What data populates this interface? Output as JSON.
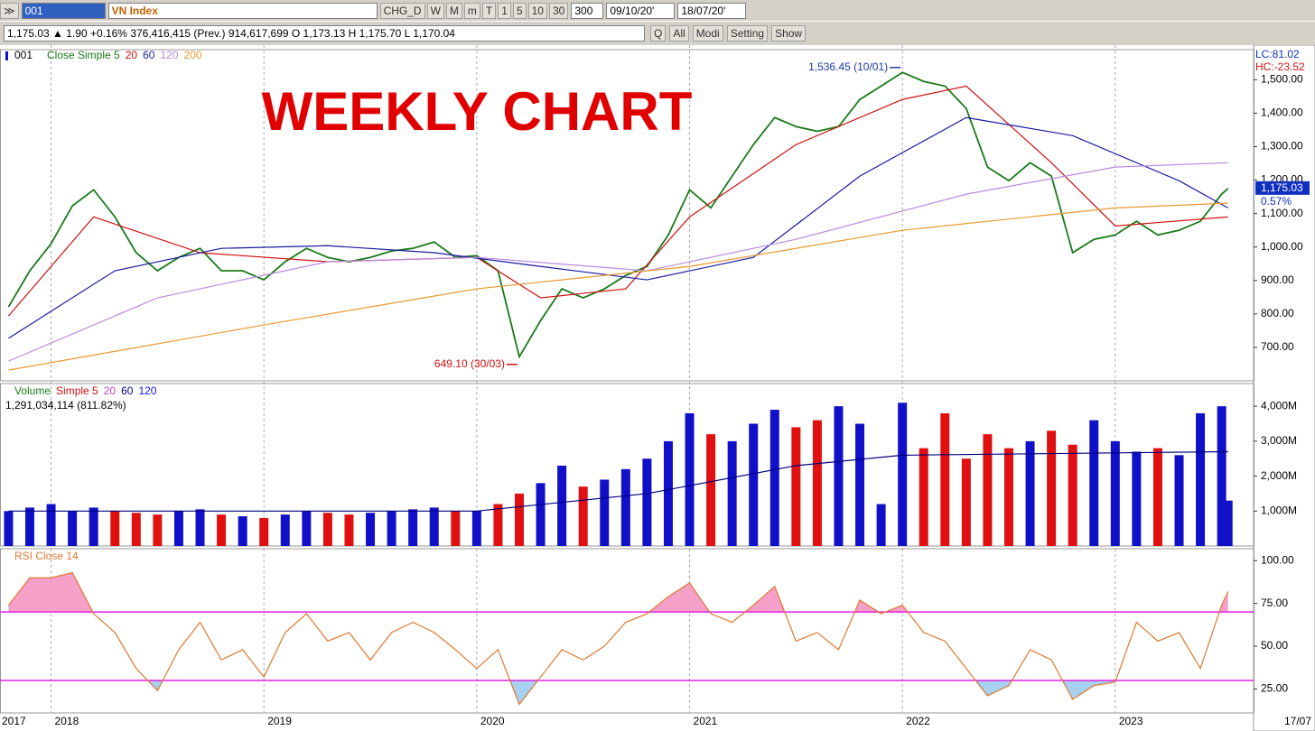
{
  "toolbar": {
    "symbol": "001",
    "index_name": "VN Index",
    "buttons": [
      "CHG_D",
      "W",
      "M",
      "m",
      "T",
      "1",
      "5",
      "10",
      "30"
    ],
    "bars": "300",
    "date_from": "09/10/20'",
    "date_to": "18/07/20'"
  },
  "info_line": "1,175.03 ▲ 1.90 +0.16% 376,416,415 (Prev.) 914,617,699 O 1,173.13 H 1,175.70 L 1,170.04",
  "info_buttons": [
    "Q",
    "All",
    "Modi",
    "Setting",
    "Show"
  ],
  "right_labels": {
    "lc": "LC:81.02",
    "hc": "HC:-23.52",
    "last": "1,175.03",
    "change": "0.57%"
  },
  "x_start_label": "2017",
  "x_end_label": "17/07",
  "chart_data": [
    {
      "type": "line",
      "title": "WEEKLY CHART",
      "symbol_tag": "001",
      "xlim": [
        2017.76,
        2023.65
      ],
      "xticks": [
        2018,
        2019,
        2020,
        2021,
        2022,
        2023
      ],
      "ylim": [
        600,
        1590
      ],
      "yticks": [
        {
          "value": 700,
          "label": "700.00"
        },
        {
          "value": 800,
          "label": "800.00"
        },
        {
          "value": 900,
          "label": "900.00"
        },
        {
          "value": 1000,
          "label": "1,000.00"
        },
        {
          "value": 1100,
          "label": "1,100.00"
        },
        {
          "value": 1200,
          "label": "1,200.00"
        },
        {
          "value": 1300,
          "label": "1,300.00"
        },
        {
          "value": 1400,
          "label": "1,400.00"
        },
        {
          "value": 1500,
          "label": "1,500.00"
        }
      ],
      "last_value": 1175,
      "series": [
        {
          "name": "Close Simple 5",
          "color": "#1a7a1a",
          "x": [
            2017.8,
            2017.9,
            2018.0,
            2018.1,
            2018.2,
            2018.3,
            2018.4,
            2018.5,
            2018.6,
            2018.7,
            2018.8,
            2018.9,
            2019.0,
            2019.1,
            2019.2,
            2019.3,
            2019.4,
            2019.5,
            2019.6,
            2019.7,
            2019.8,
            2019.9,
            2020.0,
            2020.1,
            2020.2,
            2020.3,
            2020.4,
            2020.5,
            2020.6,
            2020.7,
            2020.8,
            2020.9,
            2021.0,
            2021.1,
            2021.2,
            2021.3,
            2021.4,
            2021.5,
            2021.6,
            2021.7,
            2021.8,
            2021.9,
            2022.0,
            2022.1,
            2022.2,
            2022.3,
            2022.4,
            2022.5,
            2022.6,
            2022.7,
            2022.8,
            2022.9,
            2023.0,
            2023.1,
            2023.2,
            2023.3,
            2023.4,
            2023.5,
            2023.53
          ],
          "values": [
            821,
            929,
            1010,
            1123,
            1171,
            1090,
            983,
            929,
            969,
            996,
            929,
            929,
            902,
            956,
            996,
            969,
            956,
            969,
            988,
            996,
            1015,
            969,
            974,
            929,
            672,
            780,
            875,
            848,
            875,
            915,
            942,
            1036,
            1171,
            1117,
            1212,
            1306,
            1387,
            1360,
            1346,
            1360,
            1441,
            1481,
            1522,
            1495,
            1481,
            1414,
            1239,
            1198,
            1252,
            1212,
            983,
            1023,
            1036,
            1077,
            1036,
            1050,
            1077,
            1158,
            1175
          ]
        },
        {
          "name": "20",
          "color": "#d01010",
          "x": [
            2017.8,
            2018.2,
            2018.7,
            2019.3,
            2020.0,
            2020.3,
            2020.7,
            2021.0,
            2021.5,
            2022.0,
            2022.3,
            2022.7,
            2023.0,
            2023.53
          ],
          "values": [
            794,
            1090,
            983,
            956,
            969,
            848,
            875,
            1090,
            1306,
            1441,
            1481,
            1252,
            1063,
            1090
          ]
        },
        {
          "name": "60",
          "color": "#1a1aa0",
          "x": [
            2017.8,
            2018.3,
            2018.8,
            2019.3,
            2019.8,
            2020.3,
            2020.8,
            2021.3,
            2021.8,
            2022.3,
            2022.8,
            2023.3,
            2023.53
          ],
          "values": [
            727,
            929,
            996,
            1004,
            983,
            942,
            902,
            969,
            1212,
            1387,
            1333,
            1198,
            1117
          ]
        },
        {
          "name": "120",
          "color": "#b88ae0",
          "x": [
            2017.8,
            2018.5,
            2019.3,
            2020.0,
            2020.8,
            2021.5,
            2022.3,
            2023.0,
            2023.53
          ],
          "values": [
            659,
            848,
            956,
            969,
            929,
            1023,
            1158,
            1239,
            1252
          ]
        },
        {
          "name": "200",
          "color": "#e89a30",
          "x": [
            2017.8,
            2019.0,
            2020.0,
            2021.0,
            2022.0,
            2023.0,
            2023.53
          ],
          "values": [
            632,
            767,
            875,
            942,
            1050,
            1117,
            1131
          ]
        }
      ],
      "annotations": [
        {
          "text": "1,536.45 (10/01)",
          "x": 2022.0,
          "y": 1536.45,
          "color": "#1a3aa0",
          "side": "left"
        },
        {
          "text": "649.10 (30/03)",
          "x": 2020.2,
          "y": 649.1,
          "color": "#d01010",
          "side": "left"
        }
      ]
    },
    {
      "type": "bar",
      "info": "1,291,034,114 (811.82%)",
      "xlim": [
        2017.76,
        2023.65
      ],
      "ylim": [
        0,
        4650
      ],
      "yticks": [
        {
          "value": 1000,
          "label": "1,000M"
        },
        {
          "value": 2000,
          "label": "2,000M"
        },
        {
          "value": 3000,
          "label": "3,000M"
        },
        {
          "value": 4000,
          "label": "4,000M"
        }
      ],
      "up_color": "#1010c8",
      "down_color": "#e01010",
      "legend": [
        {
          "text": "Volume",
          "color": "#1a7a1a"
        },
        {
          "text": "Simple 5",
          "color": "#d01010"
        },
        {
          "text": "20",
          "color": "#c040c0"
        },
        {
          "text": "60",
          "color": "#000080"
        },
        {
          "text": "120",
          "color": "#1010ff"
        }
      ],
      "values": [
        1000,
        1100,
        1200,
        1000,
        1100,
        1000,
        950,
        900,
        1000,
        1050,
        900,
        850,
        800,
        900,
        1000,
        950,
        900,
        950,
        1000,
        1050,
        1100,
        1000,
        1000,
        1200,
        1500,
        1800,
        2300,
        1700,
        1900,
        2200,
        2500,
        3000,
        3800,
        3200,
        3000,
        3500,
        3900,
        3400,
        3600,
        4000,
        3500,
        1200,
        4100,
        2800,
        3800,
        2500,
        3200,
        2800,
        3000,
        3300,
        2900,
        3600,
        3000,
        2700,
        2800,
        2600,
        3800,
        4000,
        1300
      ],
      "lines": [
        {
          "color": "#000080",
          "x": [
            2017.8,
            2020.0,
            2020.8,
            2021.5,
            2022.0,
            2023.53
          ],
          "values": [
            1000,
            1000,
            1500,
            2300,
            2600,
            2700
          ]
        }
      ]
    },
    {
      "type": "line",
      "title": "RSI Close 14",
      "xlim": [
        2017.76,
        2023.65
      ],
      "ylim": [
        11,
        107
      ],
      "yticks": [
        {
          "value": 25,
          "label": "25.00"
        },
        {
          "value": 50,
          "label": "50.00"
        },
        {
          "value": 75,
          "label": "75.00"
        },
        {
          "value": 100,
          "label": "100.00"
        }
      ],
      "levels": [
        30,
        70
      ],
      "level_color": "#e020e0",
      "high_fill": "#f4a0c8",
      "low_fill": "#a8d0f0",
      "series": [
        {
          "color": "#e07830",
          "x": [
            2017.8,
            2017.9,
            2018.0,
            2018.1,
            2018.2,
            2018.3,
            2018.4,
            2018.5,
            2018.6,
            2018.7,
            2018.8,
            2018.9,
            2019.0,
            2019.1,
            2019.2,
            2019.3,
            2019.4,
            2019.5,
            2019.6,
            2019.7,
            2019.8,
            2019.9,
            2020.0,
            2020.1,
            2020.2,
            2020.3,
            2020.4,
            2020.5,
            2020.6,
            2020.7,
            2020.8,
            2020.9,
            2021.0,
            2021.1,
            2021.2,
            2021.3,
            2021.4,
            2021.5,
            2021.6,
            2021.7,
            2021.8,
            2021.9,
            2022.0,
            2022.1,
            2022.2,
            2022.3,
            2022.4,
            2022.5,
            2022.6,
            2022.7,
            2022.8,
            2022.9,
            2023.0,
            2023.1,
            2023.2,
            2023.3,
            2023.4,
            2023.5,
            2023.53
          ],
          "values": [
            74,
            90,
            90,
            93,
            69,
            58,
            37,
            24,
            48,
            64,
            42,
            48,
            32,
            58,
            69,
            53,
            58,
            42,
            58,
            64,
            58,
            48,
            37,
            48,
            16,
            32,
            48,
            42,
            50,
            64,
            69,
            79,
            87,
            69,
            64,
            74,
            85,
            53,
            58,
            48,
            77,
            69,
            74,
            58,
            53,
            37,
            21,
            27,
            48,
            42,
            19,
            27,
            29,
            64,
            53,
            58,
            37,
            74,
            82
          ]
        }
      ]
    }
  ]
}
